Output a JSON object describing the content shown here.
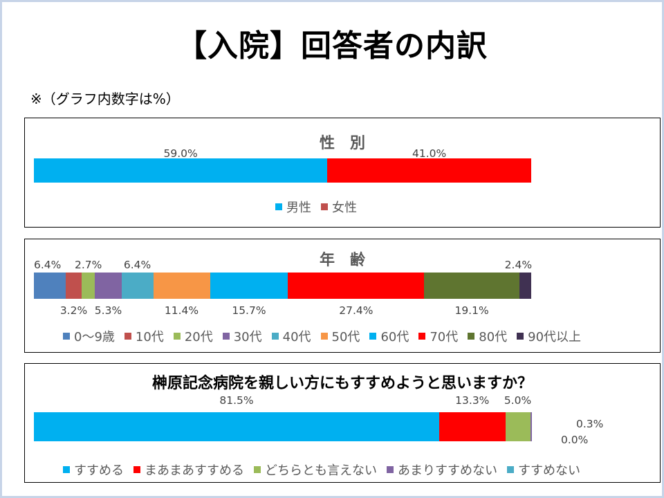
{
  "title": "【入院】回答者の内訳",
  "note": "※（グラフ内数字は%）",
  "chart_data": [
    {
      "type": "bar",
      "orientation": "horizontal-stacked",
      "title": "性　別",
      "series": [
        {
          "name": "男性",
          "values": [
            59.0
          ],
          "color": "#00b0f0"
        },
        {
          "name": "女性",
          "values": [
            41.0
          ],
          "color": "#ff0000"
        }
      ],
      "data_labels": [
        "59.0%",
        "41.0%"
      ],
      "legend": [
        "男性",
        "女性"
      ],
      "legend_colors": [
        "#00b0f0",
        "#c0504d"
      ],
      "legend_position": "bottom"
    },
    {
      "type": "bar",
      "orientation": "horizontal-stacked",
      "title": "年　齢",
      "series": [
        {
          "name": "0～9歳",
          "values": [
            6.4
          ],
          "color": "#4f81bd"
        },
        {
          "name": "10代",
          "values": [
            3.2
          ],
          "color": "#c0504d"
        },
        {
          "name": "20代",
          "values": [
            2.7
          ],
          "color": "#9bbb59"
        },
        {
          "name": "30代",
          "values": [
            5.3
          ],
          "color": "#8064a2"
        },
        {
          "name": "40代",
          "values": [
            6.4
          ],
          "color": "#4bacc6"
        },
        {
          "name": "50代",
          "values": [
            11.4
          ],
          "color": "#f79646"
        },
        {
          "name": "60代",
          "values": [
            15.7
          ],
          "color": "#00b0f0"
        },
        {
          "name": "70代",
          "values": [
            27.4
          ],
          "color": "#ff0000"
        },
        {
          "name": "80代",
          "values": [
            19.1
          ],
          "color": "#5f7530"
        },
        {
          "name": "90代以上",
          "values": [
            2.4
          ],
          "color": "#403152"
        }
      ],
      "data_labels": [
        "6.4%",
        "3.2%",
        "2.7%",
        "5.3%",
        "6.4%",
        "11.4%",
        "15.7%",
        "27.4%",
        "19.1%",
        "2.4%"
      ],
      "legend": [
        "0～9歳",
        "10代",
        "20代",
        "30代",
        "40代",
        "50代",
        "60代",
        "70代",
        "80代",
        "90代以上"
      ],
      "legend_position": "bottom"
    },
    {
      "type": "bar",
      "orientation": "horizontal-stacked",
      "title": "榊原記念病院を親しい方にもすすめようと思いますか？",
      "series": [
        {
          "name": "すすめる",
          "values": [
            81.5
          ],
          "color": "#00b0f0"
        },
        {
          "name": "まあまあすすめる",
          "values": [
            13.3
          ],
          "color": "#ff0000"
        },
        {
          "name": "どちらとも言えない",
          "values": [
            5.0
          ],
          "color": "#9bbb59"
        },
        {
          "name": "あまりすすめない",
          "values": [
            0.3
          ],
          "color": "#8064a2"
        },
        {
          "name": "すすめない",
          "values": [
            0.0
          ],
          "color": "#4bacc6"
        }
      ],
      "data_labels": [
        "81.5%",
        "13.3%",
        "5.0%",
        "0.3%",
        "0.0%"
      ],
      "legend": [
        "すすめる",
        "まあまあすすめる",
        "どちらとも言えない",
        "あまりすすめない",
        "すすめない"
      ],
      "legend_position": "bottom"
    }
  ]
}
